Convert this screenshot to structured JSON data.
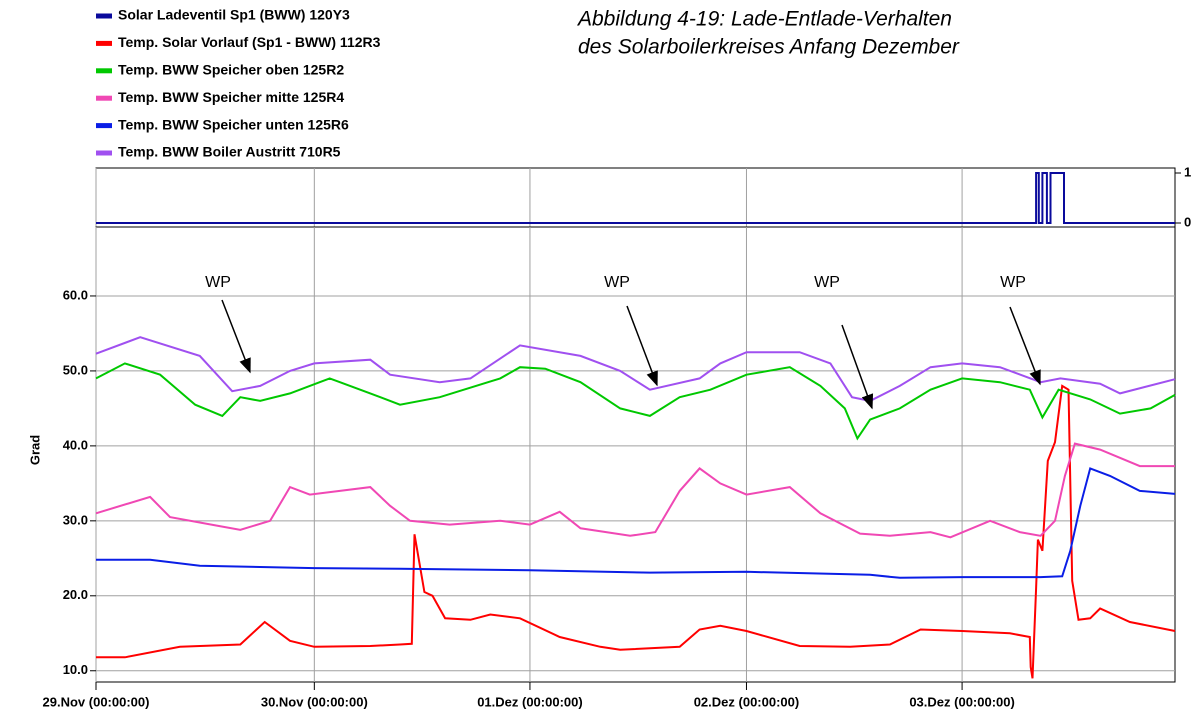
{
  "chart_data": [
    {
      "type": "line",
      "series": [
        {
          "name": "Solar Ladeventil Sp1 (BWW)  120Y3",
          "color": "#0a0a9c",
          "x": [
            0,
            104.2,
            104.2,
            104.5,
            104.5,
            104.9,
            104.9,
            105.4,
            105.4,
            105.8,
            105.8,
            107.3,
            107.3,
            119.6
          ],
          "values": [
            0,
            0,
            1,
            1,
            0,
            0,
            1,
            1,
            0,
            0,
            1,
            1,
            0,
            0
          ]
        }
      ],
      "xlim": [
        0,
        119.6
      ],
      "ylim": [
        -0.08,
        1.1
      ],
      "yticks": [
        0,
        1
      ],
      "grid": true
    },
    {
      "type": "line",
      "title": [
        "Abbildung 4-19:  Lade-Entlade-Verhalten",
        "des Solarboilerkreises Anfang Dezember"
      ],
      "ylabel": "Grad",
      "annotations": [
        "WP",
        "WP",
        "WP",
        "WP"
      ],
      "series": [
        {
          "name": "Temp. Solar Vorlauf (Sp1 - BWW) 112R3",
          "color": "#ff0000",
          "x": [
            0,
            3.2,
            9.3,
            16.0,
            18.7,
            21.5,
            24.2,
            30.4,
            33.7,
            35.0,
            35.3,
            36.4,
            37.3,
            38.7,
            41.5,
            43.7,
            47.0,
            51.4,
            55.9,
            58.1,
            64.7,
            66.9,
            69.2,
            72.1,
            78.0,
            83.6,
            88.0,
            91.4,
            96.0,
            101.3,
            103.5,
            103.6,
            103.8,
            104.2,
            104.4,
            104.9,
            105.5,
            106.3,
            107.1,
            107.8,
            108.2,
            108.9,
            110.2,
            111.3,
            114.6,
            119.6
          ],
          "values": [
            11.8,
            11.8,
            13.2,
            13.5,
            16.5,
            14,
            13.2,
            13.3,
            13.5,
            13.6,
            28.2,
            20.5,
            20,
            17,
            16.8,
            17.5,
            17,
            14.5,
            13.2,
            12.8,
            13.2,
            15.5,
            16,
            15.3,
            13.3,
            13.2,
            13.5,
            15.5,
            15.3,
            15,
            14.5,
            10.5,
            9,
            21,
            27.5,
            26,
            38,
            40.5,
            48,
            47.5,
            22,
            16.8,
            17,
            18.3,
            16.5,
            15.3
          ]
        },
        {
          "name": "Temp. BWW Speicher oben 125R2",
          "color": "#00c800",
          "x": [
            0,
            3.2,
            7.1,
            11.0,
            14.0,
            16.0,
            18.2,
            21.5,
            25.9,
            30.4,
            33.7,
            38.1,
            44.8,
            47.0,
            49.8,
            53.7,
            58.1,
            61.4,
            64.7,
            68.1,
            72.1,
            76.9,
            80.3,
            83.0,
            84.4,
            85.8,
            89.1,
            92.5,
            96.0,
            100.2,
            103.5,
            104.9,
            106.7,
            110.2,
            113.5,
            116.9,
            119.6
          ],
          "values": [
            49,
            51,
            49.5,
            45.5,
            44,
            46.5,
            46,
            47,
            49,
            47,
            45.5,
            46.5,
            49,
            50.5,
            50.3,
            48.5,
            45,
            44,
            46.5,
            47.5,
            49.5,
            50.5,
            48,
            45,
            41,
            43.5,
            45,
            47.5,
            49,
            48.5,
            47.5,
            43.8,
            47.5,
            46.2,
            44.3,
            45,
            46.8
          ]
        },
        {
          "name": "Temp. BWW Speicher mitte 125R4",
          "color": "#f048b4",
          "x": [
            0,
            6.0,
            8.2,
            13.7,
            16.0,
            19.3,
            21.5,
            23.7,
            30.4,
            32.6,
            34.8,
            39.2,
            44.8,
            48.1,
            51.4,
            53.7,
            59.2,
            62.0,
            64.7,
            66.9,
            69.2,
            72.1,
            76.9,
            80.3,
            84.7,
            88.0,
            92.5,
            94.7,
            99.1,
            102.4,
            104.7,
            106.3,
            107.4,
            108.5,
            111.3,
            115.7,
            119.6
          ],
          "values": [
            31,
            33.2,
            30.5,
            29.3,
            28.8,
            30,
            34.5,
            33.5,
            34.5,
            32,
            30,
            29.5,
            30,
            29.5,
            31.2,
            29,
            28,
            28.5,
            34,
            37,
            35,
            33.5,
            34.5,
            31,
            28.3,
            28,
            28.5,
            27.8,
            30,
            28.5,
            28,
            30,
            36,
            40.3,
            39.5,
            37.3,
            37.3
          ]
        },
        {
          "name": "Temp. BWW Speicher unten 125R6",
          "color": "#0a1ee6",
          "x": [
            0,
            6.0,
            11.5,
            24.2,
            33.7,
            48.1,
            61.4,
            72.1,
            85.8,
            89.1,
            96.0,
            104.7,
            107.1,
            108.0,
            109.1,
            110.2,
            112.4,
            115.7,
            119.6
          ],
          "values": [
            24.8,
            24.8,
            24,
            23.7,
            23.6,
            23.4,
            23.1,
            23.2,
            22.8,
            22.4,
            22.5,
            22.5,
            22.6,
            26,
            32,
            37,
            36,
            34,
            33.6
          ]
        },
        {
          "name": "Temp. BWW Boiler Austritt  710R5",
          "color": "#a050f0",
          "x": [
            0,
            4.9,
            11.5,
            15.1,
            18.2,
            21.5,
            24.2,
            30.4,
            32.6,
            38.1,
            41.5,
            47.0,
            53.7,
            58.1,
            61.4,
            66.9,
            69.2,
            72.1,
            78.0,
            81.4,
            83.8,
            85.8,
            89.1,
            92.5,
            96.0,
            100.2,
            104.7,
            106.9,
            111.3,
            113.5,
            119.6
          ],
          "values": [
            52.3,
            54.5,
            52,
            47.3,
            48,
            50,
            51,
            51.5,
            49.5,
            48.5,
            49,
            53.4,
            52,
            50,
            47.5,
            49,
            51,
            52.5,
            52.5,
            51,
            46.5,
            46,
            48,
            50.5,
            51,
            50.5,
            48.5,
            49,
            48.3,
            47,
            48.9
          ]
        }
      ],
      "xlim": [
        0,
        119.6
      ],
      "xticks": [
        {
          "value": 0,
          "label": "29.Nov (00:00:00)"
        },
        {
          "value": 24.2,
          "label": "30.Nov (00:00:00)"
        },
        {
          "value": 48.1,
          "label": "01.Dez (00:00:00)"
        },
        {
          "value": 72.1,
          "label": "02.Dez (00:00:00)"
        },
        {
          "value": 96.0,
          "label": "03.Dez (00:00:00)"
        }
      ],
      "ylim": [
        8.5,
        69.2
      ],
      "yticks": [
        {
          "value": 10,
          "label": "10.0"
        },
        {
          "value": 20,
          "label": "20.0"
        },
        {
          "value": 30,
          "label": "30.0"
        },
        {
          "value": 40,
          "label": "40.0"
        },
        {
          "value": 50,
          "label": "50.0"
        },
        {
          "value": 60,
          "label": "60.0"
        }
      ],
      "grid": true
    }
  ]
}
